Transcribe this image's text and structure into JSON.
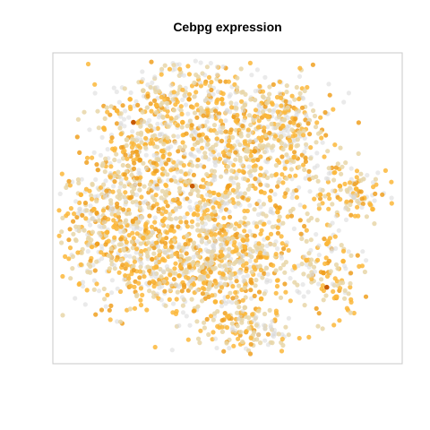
{
  "chart_data": {
    "type": "scatter",
    "title": "Cebpg expression",
    "xlabel": "",
    "ylabel": "",
    "axes_visible": false,
    "grid": false,
    "legend": "none",
    "colors": {
      "zero": "#d9d9d9",
      "low": "#e8d6a8",
      "mid": "#fbb73a",
      "high": "#f0a020",
      "max": "#c85a00",
      "panel_border": "#c8c8c8"
    },
    "series": [
      {
        "values": [
          {
            "x": 0.16,
            "y": 0.84,
            "expr": 0.8
          },
          {
            "x": 0.2,
            "y": 0.88,
            "expr": 0.9
          },
          {
            "x": 0.24,
            "y": 0.91,
            "expr": 0.5
          },
          {
            "x": 0.28,
            "y": 0.86,
            "expr": 0.7
          },
          {
            "x": 0.12,
            "y": 0.78,
            "expr": 0.9
          },
          {
            "x": 0.19,
            "y": 0.74,
            "expr": 0.6
          },
          {
            "x": 0.23,
            "y": 0.67,
            "expr": 1.0
          },
          {
            "x": 0.3,
            "y": 0.7,
            "expr": 0.8
          },
          {
            "x": 0.36,
            "y": 0.8,
            "expr": 0.7
          },
          {
            "x": 0.42,
            "y": 0.84,
            "expr": 0.6
          },
          {
            "x": 0.48,
            "y": 0.88,
            "expr": 0.8
          },
          {
            "x": 0.55,
            "y": 0.86,
            "expr": 0.5
          },
          {
            "x": 0.62,
            "y": 0.82,
            "expr": 0.7
          },
          {
            "x": 0.66,
            "y": 0.75,
            "expr": 0.6
          },
          {
            "x": 0.7,
            "y": 0.68,
            "expr": 0.9
          },
          {
            "x": 0.58,
            "y": 0.7,
            "expr": 1.0
          },
          {
            "x": 0.5,
            "y": 0.72,
            "expr": 0.8
          },
          {
            "x": 0.43,
            "y": 0.68,
            "expr": 0.5
          },
          {
            "x": 0.05,
            "y": 0.55,
            "expr": 0.9
          },
          {
            "x": 0.09,
            "y": 0.5,
            "expr": 0.7
          },
          {
            "x": 0.13,
            "y": 0.42,
            "expr": 0.8
          },
          {
            "x": 0.18,
            "y": 0.36,
            "expr": 0.6
          },
          {
            "x": 0.24,
            "y": 0.4,
            "expr": 0.9
          },
          {
            "x": 0.3,
            "y": 0.46,
            "expr": 0.8
          },
          {
            "x": 0.35,
            "y": 0.52,
            "expr": 0.7
          },
          {
            "x": 0.4,
            "y": 0.58,
            "expr": 0.5
          },
          {
            "x": 0.47,
            "y": 0.55,
            "expr": 0.9
          },
          {
            "x": 0.53,
            "y": 0.52,
            "expr": 0.6
          },
          {
            "x": 0.6,
            "y": 0.56,
            "expr": 0.8
          },
          {
            "x": 0.65,
            "y": 0.49,
            "expr": 0.7
          },
          {
            "x": 0.28,
            "y": 0.3,
            "expr": 0.8
          },
          {
            "x": 0.35,
            "y": 0.27,
            "expr": 0.9
          },
          {
            "x": 0.42,
            "y": 0.3,
            "expr": 0.6
          },
          {
            "x": 0.48,
            "y": 0.34,
            "expr": 0.8
          },
          {
            "x": 0.55,
            "y": 0.37,
            "expr": 0.7
          },
          {
            "x": 0.62,
            "y": 0.4,
            "expr": 0.9
          },
          {
            "x": 0.46,
            "y": 0.18,
            "expr": 0.8
          },
          {
            "x": 0.5,
            "y": 0.13,
            "expr": 0.9
          },
          {
            "x": 0.55,
            "y": 0.16,
            "expr": 0.6
          },
          {
            "x": 0.6,
            "y": 0.19,
            "expr": 0.7
          },
          {
            "x": 0.78,
            "y": 0.55,
            "expr": 0.8
          },
          {
            "x": 0.84,
            "y": 0.58,
            "expr": 0.7
          },
          {
            "x": 0.89,
            "y": 0.57,
            "expr": 0.9
          },
          {
            "x": 0.94,
            "y": 0.5,
            "expr": 0.8
          },
          {
            "x": 0.8,
            "y": 0.38,
            "expr": 0.9
          },
          {
            "x": 0.85,
            "y": 0.32,
            "expr": 0.8
          },
          {
            "x": 0.79,
            "y": 0.28,
            "expr": 1.0
          },
          {
            "x": 0.75,
            "y": 0.31,
            "expr": 0.6
          },
          {
            "x": 0.21,
            "y": 0.8,
            "expr": 1.4
          },
          {
            "x": 0.39,
            "y": 0.58,
            "expr": 1.5
          },
          {
            "x": 0.5,
            "y": 0.58,
            "expr": 1.3
          },
          {
            "x": 0.8,
            "y": 0.23,
            "expr": 1.5
          },
          {
            "x": 0.38,
            "y": 0.88,
            "expr": 1.3
          },
          {
            "x": 0.1,
            "y": 0.38,
            "expr": 1.2
          }
        ]
      }
    ]
  }
}
